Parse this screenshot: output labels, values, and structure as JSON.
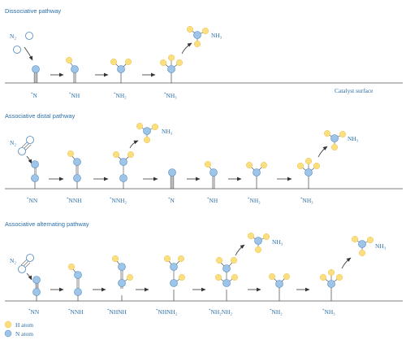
{
  "colors": {
    "n_atom": "#9ec4e8",
    "n_stroke": "#4d87bd",
    "h_atom": "#fbdf7f",
    "h_stroke": "#e8c35a",
    "text": "#2b6ea6",
    "bond": "#4a4a4a"
  },
  "panels": [
    {
      "title": "Dissociative pathway",
      "surface_label": "Catalyst surface",
      "species": [
        "N",
        "NH",
        "NH₂",
        "NH₃"
      ],
      "labels": [
        "N₂",
        "NH₃"
      ]
    },
    {
      "title": "Associative distal pathway",
      "species": [
        "NN",
        "NNH",
        "NNH₂",
        "N",
        "NH",
        "NH₂",
        "NH₃"
      ],
      "labels": [
        "N₂",
        "NH₃",
        "NH₃"
      ]
    },
    {
      "title": "Associative alternating pathway",
      "species": [
        "NN",
        "NNH",
        "NHNH",
        "NHNH₂",
        "NH₂NH₂",
        "NH₂",
        "NH₃"
      ],
      "labels": [
        "N₂",
        "NH₃",
        "NH₃"
      ]
    }
  ],
  "legend": [
    {
      "label": "H atom",
      "color": "#fbdf7f"
    },
    {
      "label": "N atom",
      "color": "#9ec4e8"
    }
  ]
}
